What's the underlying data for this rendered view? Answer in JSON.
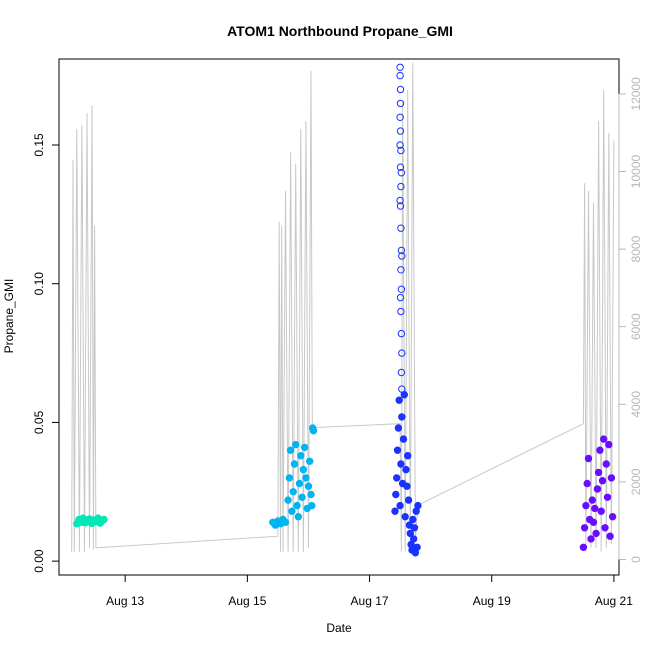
{
  "chart_data": {
    "type": "scatter",
    "title": "ATOM1 Northbound Propane_GMI",
    "xlabel": "Date",
    "ylabel": "Propane_GMI",
    "xlim": [
      "2024-08-11T22:00",
      "2024-08-21T02:00"
    ],
    "ylim": [
      -0.005,
      0.181
    ],
    "y2lim": [
      -400,
      12900
    ],
    "x_ticks": [
      {
        "value": "2024-08-13T00:00",
        "label": "Aug 13"
      },
      {
        "value": "2024-08-15T00:00",
        "label": "Aug 15"
      },
      {
        "value": "2024-08-17T00:00",
        "label": "Aug 17"
      },
      {
        "value": "2024-08-19T00:00",
        "label": "Aug 19"
      },
      {
        "value": "2024-08-21T00:00",
        "label": "Aug 21"
      }
    ],
    "y_ticks": [
      {
        "value": 0.0,
        "label": "0.00"
      },
      {
        "value": 0.05,
        "label": "0.05"
      },
      {
        "value": 0.1,
        "label": "0.10"
      },
      {
        "value": 0.15,
        "label": "0.15"
      }
    ],
    "y2_ticks": [
      {
        "value": 0,
        "label": "0"
      },
      {
        "value": 2000,
        "label": "2000"
      },
      {
        "value": 4000,
        "label": "4000"
      },
      {
        "value": 6000,
        "label": "6000"
      },
      {
        "value": 8000,
        "label": "8000"
      },
      {
        "value": 10000,
        "label": "10000"
      },
      {
        "value": 12000,
        "label": "12000"
      }
    ],
    "grid": false,
    "series": [
      {
        "color": "#00e8b4",
        "points": [
          {
            "x": "2024-08-12T05:00",
            "y": 0.0135
          },
          {
            "x": "2024-08-12T05:50",
            "y": 0.015
          },
          {
            "x": "2024-08-12T06:40",
            "y": 0.014
          },
          {
            "x": "2024-08-12T07:30",
            "y": 0.0155
          },
          {
            "x": "2024-08-12T08:20",
            "y": 0.0138
          },
          {
            "x": "2024-08-12T09:10",
            "y": 0.0147
          },
          {
            "x": "2024-08-12T10:00",
            "y": 0.0152
          },
          {
            "x": "2024-08-12T10:50",
            "y": 0.0136
          },
          {
            "x": "2024-08-12T11:40",
            "y": 0.0148
          },
          {
            "x": "2024-08-12T12:30",
            "y": 0.0142
          },
          {
            "x": "2024-08-12T13:20",
            "y": 0.0155
          },
          {
            "x": "2024-08-12T14:10",
            "y": 0.0137
          },
          {
            "x": "2024-08-12T15:00",
            "y": 0.0146
          },
          {
            "x": "2024-08-12T15:40",
            "y": 0.015
          }
        ]
      },
      {
        "color": "#00b4f0",
        "points": [
          {
            "x": "2024-08-15T10:00",
            "y": 0.014
          },
          {
            "x": "2024-08-15T11:00",
            "y": 0.013
          },
          {
            "x": "2024-08-15T12:00",
            "y": 0.0145
          },
          {
            "x": "2024-08-15T13:00",
            "y": 0.0135
          },
          {
            "x": "2024-08-15T14:00",
            "y": 0.015
          },
          {
            "x": "2024-08-15T15:00",
            "y": 0.014
          },
          {
            "x": "2024-08-15T16:00",
            "y": 0.022
          },
          {
            "x": "2024-08-15T16:30",
            "y": 0.03
          },
          {
            "x": "2024-08-15T17:00",
            "y": 0.04
          },
          {
            "x": "2024-08-15T17:30",
            "y": 0.018
          },
          {
            "x": "2024-08-15T18:00",
            "y": 0.025
          },
          {
            "x": "2024-08-15T18:30",
            "y": 0.035
          },
          {
            "x": "2024-08-15T19:00",
            "y": 0.042
          },
          {
            "x": "2024-08-15T19:30",
            "y": 0.02
          },
          {
            "x": "2024-08-15T20:00",
            "y": 0.016
          },
          {
            "x": "2024-08-15T20:30",
            "y": 0.028
          },
          {
            "x": "2024-08-15T21:00",
            "y": 0.038
          },
          {
            "x": "2024-08-15T21:30",
            "y": 0.023
          },
          {
            "x": "2024-08-15T22:00",
            "y": 0.033
          },
          {
            "x": "2024-08-15T22:30",
            "y": 0.041
          },
          {
            "x": "2024-08-15T23:00",
            "y": 0.03
          },
          {
            "x": "2024-08-15T23:30",
            "y": 0.019
          },
          {
            "x": "2024-08-16T00:00",
            "y": 0.027
          },
          {
            "x": "2024-08-16T00:30",
            "y": 0.036
          },
          {
            "x": "2024-08-16T01:00",
            "y": 0.024
          },
          {
            "x": "2024-08-16T01:20",
            "y": 0.02
          },
          {
            "x": "2024-08-16T01:40",
            "y": 0.048
          },
          {
            "x": "2024-08-16T02:00",
            "y": 0.047
          }
        ]
      },
      {
        "color": "#1a33ff",
        "points": [
          {
            "x": "2024-08-17T10:00",
            "y": 0.018
          },
          {
            "x": "2024-08-17T10:20",
            "y": 0.024
          },
          {
            "x": "2024-08-17T10:40",
            "y": 0.03
          },
          {
            "x": "2024-08-17T11:00",
            "y": 0.04
          },
          {
            "x": "2024-08-17T11:20",
            "y": 0.048
          },
          {
            "x": "2024-08-17T11:40",
            "y": 0.058
          },
          {
            "x": "2024-08-17T12:00",
            "y": 0.02
          },
          {
            "x": "2024-08-17T12:20",
            "y": 0.035
          },
          {
            "x": "2024-08-17T12:40",
            "y": 0.052
          },
          {
            "x": "2024-08-17T13:00",
            "y": 0.028
          },
          {
            "x": "2024-08-17T13:20",
            "y": 0.044
          },
          {
            "x": "2024-08-17T13:40",
            "y": 0.06
          },
          {
            "x": "2024-08-17T14:00",
            "y": 0.016
          },
          {
            "x": "2024-08-17T14:20",
            "y": 0.033
          },
          {
            "x": "2024-08-17T14:40",
            "y": 0.027
          },
          {
            "x": "2024-08-17T15:00",
            "y": 0.038
          },
          {
            "x": "2024-08-17T15:20",
            "y": 0.022
          },
          {
            "x": "2024-08-17T15:40",
            "y": 0.013
          },
          {
            "x": "2024-08-17T16:00",
            "y": 0.01
          },
          {
            "x": "2024-08-17T16:20",
            "y": 0.006
          },
          {
            "x": "2024-08-17T16:40",
            "y": 0.004
          },
          {
            "x": "2024-08-17T17:00",
            "y": 0.015
          },
          {
            "x": "2024-08-17T17:20",
            "y": 0.008
          },
          {
            "x": "2024-08-17T17:40",
            "y": 0.012
          },
          {
            "x": "2024-08-17T18:00",
            "y": 0.003
          },
          {
            "x": "2024-08-17T18:20",
            "y": 0.018
          },
          {
            "x": "2024-08-17T18:40",
            "y": 0.005
          },
          {
            "x": "2024-08-17T19:00",
            "y": 0.02
          }
        ]
      },
      {
        "color": "#1a33ff",
        "hollow": true,
        "points": [
          {
            "x": "2024-08-17T12:00",
            "y": 0.178
          },
          {
            "x": "2024-08-17T12:00",
            "y": 0.175
          },
          {
            "x": "2024-08-17T12:10",
            "y": 0.17
          },
          {
            "x": "2024-08-17T12:10",
            "y": 0.165
          },
          {
            "x": "2024-08-17T12:00",
            "y": 0.16
          },
          {
            "x": "2024-08-17T12:10",
            "y": 0.155
          },
          {
            "x": "2024-08-17T12:20",
            "y": 0.148
          },
          {
            "x": "2024-08-17T12:10",
            "y": 0.142
          },
          {
            "x": "2024-08-17T12:20",
            "y": 0.135
          },
          {
            "x": "2024-08-17T12:10",
            "y": 0.128
          },
          {
            "x": "2024-08-17T12:20",
            "y": 0.12
          },
          {
            "x": "2024-08-17T12:30",
            "y": 0.112
          },
          {
            "x": "2024-08-17T12:20",
            "y": 0.105
          },
          {
            "x": "2024-08-17T12:30",
            "y": 0.098
          },
          {
            "x": "2024-08-17T12:20",
            "y": 0.09
          },
          {
            "x": "2024-08-17T12:30",
            "y": 0.082
          },
          {
            "x": "2024-08-17T12:40",
            "y": 0.075
          },
          {
            "x": "2024-08-17T12:30",
            "y": 0.068
          },
          {
            "x": "2024-08-17T12:40",
            "y": 0.062
          },
          {
            "x": "2024-08-17T12:00",
            "y": 0.15
          },
          {
            "x": "2024-08-17T12:30",
            "y": 0.14
          },
          {
            "x": "2024-08-17T12:00",
            "y": 0.13
          },
          {
            "x": "2024-08-17T12:40",
            "y": 0.11
          },
          {
            "x": "2024-08-17T12:10",
            "y": 0.095
          }
        ]
      },
      {
        "color": "#6a0dff",
        "points": [
          {
            "x": "2024-08-20T12:00",
            "y": 0.005
          },
          {
            "x": "2024-08-20T12:30",
            "y": 0.012
          },
          {
            "x": "2024-08-20T13:00",
            "y": 0.02
          },
          {
            "x": "2024-08-20T13:30",
            "y": 0.028
          },
          {
            "x": "2024-08-20T14:00",
            "y": 0.037
          },
          {
            "x": "2024-08-20T14:30",
            "y": 0.015
          },
          {
            "x": "2024-08-20T15:00",
            "y": 0.008
          },
          {
            "x": "2024-08-20T15:30",
            "y": 0.022
          },
          {
            "x": "2024-08-20T16:00",
            "y": 0.014
          },
          {
            "x": "2024-08-20T16:30",
            "y": 0.019
          },
          {
            "x": "2024-08-20T17:00",
            "y": 0.01
          },
          {
            "x": "2024-08-20T17:30",
            "y": 0.026
          },
          {
            "x": "2024-08-20T18:00",
            "y": 0.032
          },
          {
            "x": "2024-08-20T18:30",
            "y": 0.04
          },
          {
            "x": "2024-08-20T19:00",
            "y": 0.018
          },
          {
            "x": "2024-08-20T19:30",
            "y": 0.029
          },
          {
            "x": "2024-08-20T20:00",
            "y": 0.044
          },
          {
            "x": "2024-08-20T20:30",
            "y": 0.012
          },
          {
            "x": "2024-08-20T21:00",
            "y": 0.035
          },
          {
            "x": "2024-08-20T21:30",
            "y": 0.023
          },
          {
            "x": "2024-08-20T22:00",
            "y": 0.042
          },
          {
            "x": "2024-08-20T22:30",
            "y": 0.009
          },
          {
            "x": "2024-08-20T23:00",
            "y": 0.03
          },
          {
            "x": "2024-08-20T23:30",
            "y": 0.016
          }
        ]
      }
    ],
    "line2": {
      "color": "#c8c8c8",
      "points": [
        {
          "x": "2024-08-12T03:00",
          "y": 200
        },
        {
          "x": "2024-08-12T03:30",
          "y": 10300
        },
        {
          "x": "2024-08-12T04:00",
          "y": 200
        },
        {
          "x": "2024-08-12T05:00",
          "y": 11100
        },
        {
          "x": "2024-08-12T06:00",
          "y": 200
        },
        {
          "x": "2024-08-12T07:00",
          "y": 11200
        },
        {
          "x": "2024-08-12T08:00",
          "y": 200
        },
        {
          "x": "2024-08-12T09:00",
          "y": 11500
        },
        {
          "x": "2024-08-12T10:00",
          "y": 300
        },
        {
          "x": "2024-08-12T11:00",
          "y": 11700
        },
        {
          "x": "2024-08-12T11:30",
          "y": 250
        },
        {
          "x": "2024-08-12T12:00",
          "y": 8600
        },
        {
          "x": "2024-08-12T12:30",
          "y": 300
        },
        {
          "x": "2024-08-15T12:00",
          "y": 600
        },
        {
          "x": "2024-08-15T12:30",
          "y": 8700
        },
        {
          "x": "2024-08-15T13:00",
          "y": 200
        },
        {
          "x": "2024-08-15T13:30",
          "y": 8600
        },
        {
          "x": "2024-08-15T14:00",
          "y": 200
        },
        {
          "x": "2024-08-15T15:00",
          "y": 9500
        },
        {
          "x": "2024-08-15T16:00",
          "y": 200
        },
        {
          "x": "2024-08-15T17:00",
          "y": 10500
        },
        {
          "x": "2024-08-15T18:00",
          "y": 200
        },
        {
          "x": "2024-08-15T19:00",
          "y": 10200
        },
        {
          "x": "2024-08-15T20:00",
          "y": 200
        },
        {
          "x": "2024-08-15T21:00",
          "y": 11100
        },
        {
          "x": "2024-08-15T22:00",
          "y": 200
        },
        {
          "x": "2024-08-15T23:00",
          "y": 11300
        },
        {
          "x": "2024-08-16T00:00",
          "y": 300
        },
        {
          "x": "2024-08-16T01:00",
          "y": 12600
        },
        {
          "x": "2024-08-16T01:30",
          "y": 3400
        },
        {
          "x": "2024-08-17T12:00",
          "y": 3500
        },
        {
          "x": "2024-08-17T12:30",
          "y": 200
        },
        {
          "x": "2024-08-17T13:00",
          "y": 11800
        },
        {
          "x": "2024-08-17T14:00",
          "y": 200
        },
        {
          "x": "2024-08-17T15:00",
          "y": 12100
        },
        {
          "x": "2024-08-17T16:00",
          "y": 200
        },
        {
          "x": "2024-08-17T17:00",
          "y": 12800
        },
        {
          "x": "2024-08-17T18:00",
          "y": 500
        },
        {
          "x": "2024-08-17T19:00",
          "y": 1400
        },
        {
          "x": "2024-08-20T12:00",
          "y": 3500
        },
        {
          "x": "2024-08-20T12:30",
          "y": 9700
        },
        {
          "x": "2024-08-20T13:00",
          "y": 200
        },
        {
          "x": "2024-08-20T14:00",
          "y": 9500
        },
        {
          "x": "2024-08-20T15:00",
          "y": 300
        },
        {
          "x": "2024-08-20T16:00",
          "y": 9200
        },
        {
          "x": "2024-08-20T17:00",
          "y": 300
        },
        {
          "x": "2024-08-20T18:00",
          "y": 11300
        },
        {
          "x": "2024-08-20T19:00",
          "y": 200
        },
        {
          "x": "2024-08-20T20:00",
          "y": 12100
        },
        {
          "x": "2024-08-20T21:00",
          "y": 300
        },
        {
          "x": "2024-08-20T22:00",
          "y": 11000
        },
        {
          "x": "2024-08-20T23:00",
          "y": 400
        },
        {
          "x": "2024-08-21T00:00",
          "y": 10800
        }
      ]
    }
  }
}
